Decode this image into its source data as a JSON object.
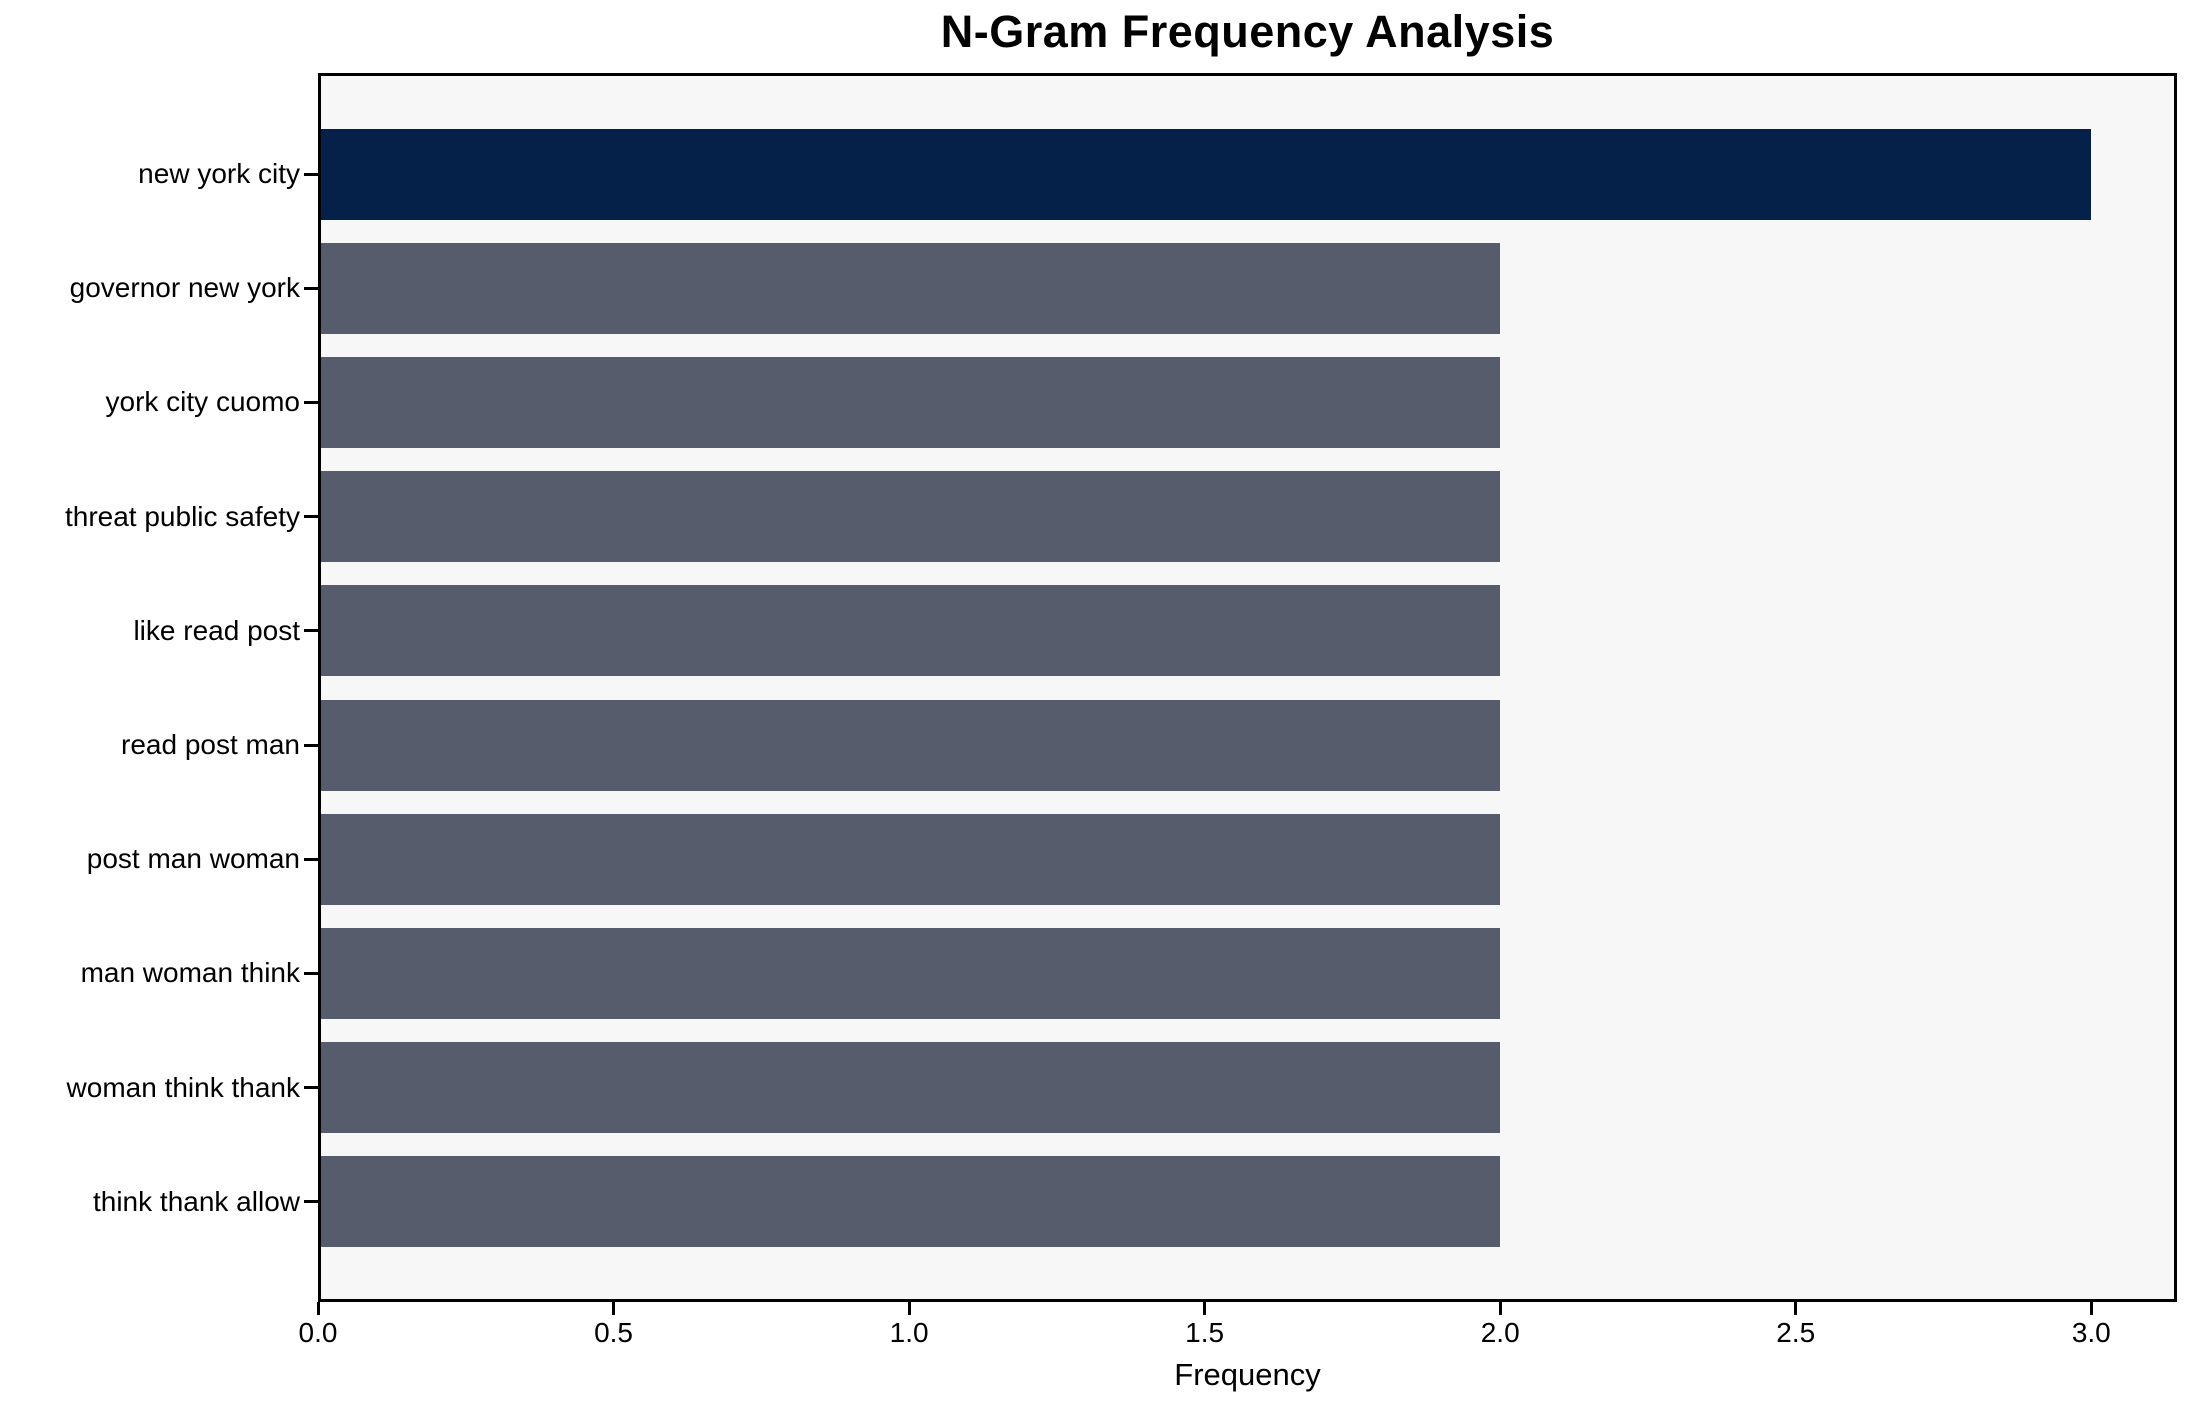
{
  "chart_data": {
    "type": "bar",
    "orientation": "horizontal",
    "title": "N-Gram Frequency Analysis",
    "xlabel": "Frequency",
    "ylabel": "",
    "categories": [
      "new york city",
      "governor new york",
      "york city cuomo",
      "threat public safety",
      "like read post",
      "read post man",
      "post man woman",
      "man woman think",
      "woman think thank",
      "think thank allow"
    ],
    "values": [
      3.0,
      2.0,
      2.0,
      2.0,
      2.0,
      2.0,
      2.0,
      2.0,
      2.0,
      2.0
    ],
    "bar_colors": [
      "#052149",
      "#565c6c",
      "#565c6c",
      "#565c6c",
      "#565c6c",
      "#565c6c",
      "#565c6c",
      "#565c6c",
      "#565c6c",
      "#565c6c"
    ],
    "xlim": [
      0,
      3.145
    ],
    "xticks": [
      0.0,
      0.5,
      1.0,
      1.5,
      2.0,
      2.5,
      3.0
    ],
    "xtick_labels": [
      "0.0",
      "0.5",
      "1.0",
      "1.5",
      "2.0",
      "2.5",
      "3.0"
    ],
    "grid": false,
    "legend": null,
    "colors": {
      "highlight_bar": "#052149",
      "default_bar": "#565c6c",
      "plot_background": "#f7f7f7",
      "figure_background": "#ffffff",
      "axis": "#000000",
      "text": "#000000"
    }
  }
}
